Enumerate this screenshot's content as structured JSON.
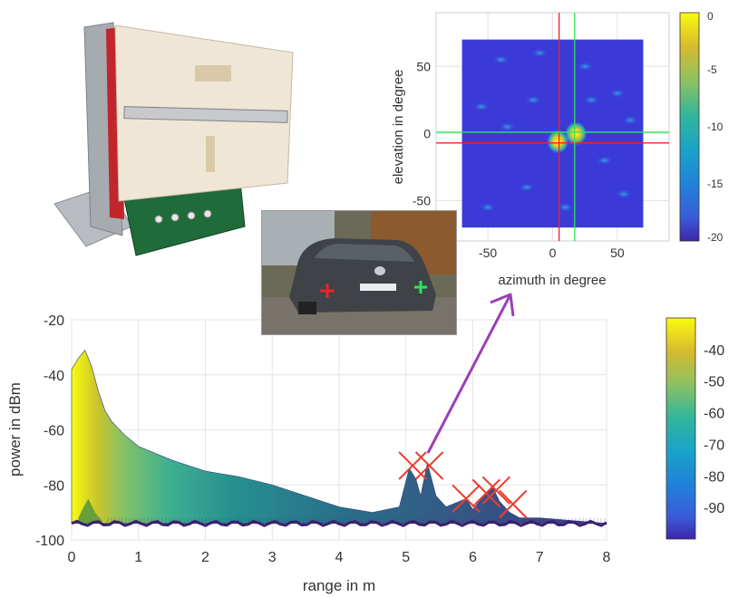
{
  "chart_data": [
    {
      "type": "heatmap",
      "xlabel": "azimuth in degree",
      "ylabel": "elevation in degree",
      "xlim": [
        -90,
        90
      ],
      "ylim": [
        -80,
        90
      ],
      "xticks": [
        -50,
        0,
        50
      ],
      "yticks": [
        -50,
        0,
        50
      ],
      "data_extent": {
        "azimuth": [
          -70,
          70
        ],
        "elevation": [
          -70,
          70
        ]
      },
      "grid": true,
      "colorbar": {
        "min": -20,
        "max": 0,
        "ticks": [
          0,
          -5,
          -10,
          -15,
          -20
        ]
      },
      "markers": [
        {
          "color": "#e8262a",
          "azimuth": 5,
          "elevation": -7
        },
        {
          "color": "#2ee65a",
          "azimuth": 17,
          "elevation": 1
        }
      ],
      "hotspots": [
        {
          "azimuth": 4,
          "elevation": -6,
          "level": -2
        },
        {
          "azimuth": 18,
          "elevation": 0,
          "level": 0
        }
      ]
    },
    {
      "type": "area",
      "xlabel": "range in m",
      "ylabel": "power in dBm",
      "xlim": [
        0,
        8
      ],
      "ylim": [
        -100,
        -20
      ],
      "xticks": [
        0,
        1,
        2,
        3,
        4,
        5,
        6,
        7,
        8
      ],
      "yticks": [
        -100,
        -80,
        -60,
        -40,
        -20
      ],
      "grid": true,
      "colorbar": {
        "min": -100,
        "max": -30,
        "ticks": [
          -40,
          -50,
          -60,
          -70,
          -80,
          -90
        ]
      },
      "envelope": [
        {
          "x": 0,
          "y": -38
        },
        {
          "x": 0.1,
          "y": -34
        },
        {
          "x": 0.2,
          "y": -31
        },
        {
          "x": 0.3,
          "y": -37
        },
        {
          "x": 0.4,
          "y": -46
        },
        {
          "x": 0.5,
          "y": -53
        },
        {
          "x": 0.6,
          "y": -57
        },
        {
          "x": 0.8,
          "y": -62
        },
        {
          "x": 1,
          "y": -66
        },
        {
          "x": 1.5,
          "y": -71
        },
        {
          "x": 2,
          "y": -75
        },
        {
          "x": 2.5,
          "y": -77
        },
        {
          "x": 3,
          "y": -80
        },
        {
          "x": 3.5,
          "y": -84
        },
        {
          "x": 4,
          "y": -88
        },
        {
          "x": 4.5,
          "y": -90
        },
        {
          "x": 4.9,
          "y": -88
        },
        {
          "x": 5.05,
          "y": -74
        },
        {
          "x": 5.15,
          "y": -78
        },
        {
          "x": 5.22,
          "y": -84
        },
        {
          "x": 5.32,
          "y": -72
        },
        {
          "x": 5.45,
          "y": -84
        },
        {
          "x": 5.6,
          "y": -88
        },
        {
          "x": 5.8,
          "y": -86
        },
        {
          "x": 5.9,
          "y": -85
        },
        {
          "x": 6.0,
          "y": -89
        },
        {
          "x": 6.1,
          "y": -86
        },
        {
          "x": 6.3,
          "y": -81
        },
        {
          "x": 6.4,
          "y": -86
        },
        {
          "x": 6.55,
          "y": -90
        },
        {
          "x": 6.7,
          "y": -92
        },
        {
          "x": 7,
          "y": -92
        },
        {
          "x": 7.5,
          "y": -93
        },
        {
          "x": 8,
          "y": -94
        }
      ],
      "second_peak": [
        {
          "x": 0.1,
          "y": -92
        },
        {
          "x": 0.18,
          "y": -88
        },
        {
          "x": 0.25,
          "y": -85
        },
        {
          "x": 0.35,
          "y": -90
        },
        {
          "x": 0.45,
          "y": -93
        }
      ],
      "noise_floor": -94,
      "detections": [
        {
          "x": 5.1,
          "y": -73
        },
        {
          "x": 5.35,
          "y": -73
        },
        {
          "x": 5.9,
          "y": -85
        },
        {
          "x": 6.2,
          "y": -83
        },
        {
          "x": 6.35,
          "y": -82
        },
        {
          "x": 6.6,
          "y": -87
        }
      ]
    }
  ],
  "annotation": {
    "arrow_color": "#9b3fb5",
    "cross_color": "#ee3c2f"
  }
}
